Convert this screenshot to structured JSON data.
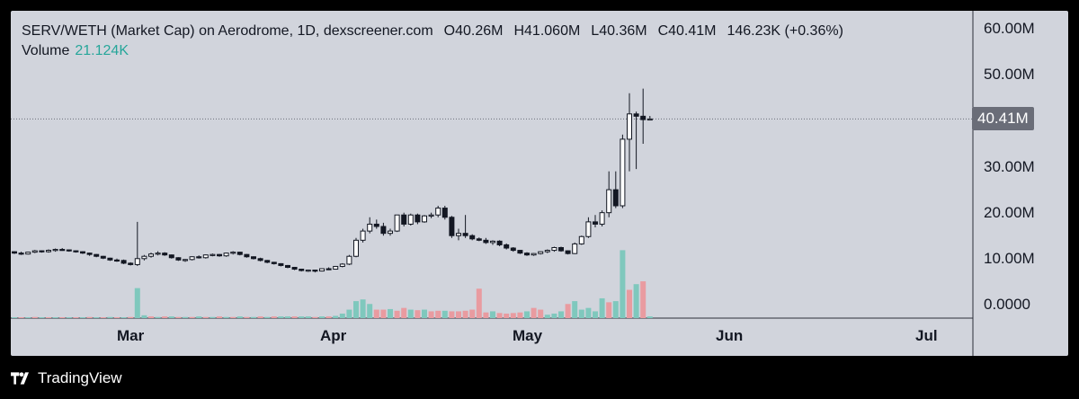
{
  "header": {
    "symbol": "SERV/WETH (Market Cap) on Aerodrome, 1D, dexscreener.com",
    "open": "O40.26M",
    "high": "H41.060M",
    "low": "L40.36M",
    "close": "C40.41M",
    "change": "146.23K (+0.36%)",
    "volume_label": "Volume",
    "volume_value": "21.124K"
  },
  "price_badge": "40.41M",
  "footer": {
    "brand": "TradingView"
  },
  "colors": {
    "up": "#26a69a",
    "down": "#ef5350",
    "candle": "#131722",
    "background": "#d1d4dc"
  },
  "chart_data": {
    "type": "candlestick",
    "x_ticks": [
      "Mar",
      "Apr",
      "May",
      "Jun",
      "Jul"
    ],
    "y_ticks": [
      "60.00M",
      "50.00M",
      "40.00M",
      "30.00M",
      "20.00M",
      "10.00M",
      "0.0000"
    ],
    "ylim": [
      -1,
      62
    ],
    "current_price": 40.41,
    "candles": [
      [
        11.5,
        11.6,
        11.0,
        11.2
      ],
      [
        11.2,
        11.5,
        10.8,
        11.0
      ],
      [
        11.0,
        11.5,
        10.9,
        11.4
      ],
      [
        11.4,
        11.9,
        11.2,
        11.7
      ],
      [
        11.7,
        11.8,
        11.3,
        11.5
      ],
      [
        11.5,
        12.0,
        11.3,
        11.8
      ],
      [
        11.8,
        12.2,
        11.5,
        12.0
      ],
      [
        12.0,
        12.3,
        11.7,
        11.9
      ],
      [
        11.9,
        12.0,
        11.5,
        11.7
      ],
      [
        11.7,
        11.8,
        11.3,
        11.5
      ],
      [
        11.5,
        11.6,
        11.0,
        11.2
      ],
      [
        11.2,
        11.3,
        10.6,
        10.9
      ],
      [
        10.9,
        11.0,
        10.3,
        10.5
      ],
      [
        10.5,
        10.6,
        9.9,
        10.1
      ],
      [
        10.1,
        10.2,
        9.5,
        9.7
      ],
      [
        9.7,
        10.0,
        9.3,
        9.6
      ],
      [
        9.6,
        9.8,
        8.8,
        9.0
      ],
      [
        9.0,
        9.2,
        8.5,
        8.7
      ],
      [
        8.7,
        18.0,
        8.4,
        10.0
      ],
      [
        10.0,
        10.8,
        9.6,
        10.5
      ],
      [
        10.5,
        11.3,
        10.2,
        11.0
      ],
      [
        11.0,
        11.6,
        10.7,
        11.2
      ],
      [
        11.2,
        11.4,
        10.6,
        10.8
      ],
      [
        10.8,
        10.9,
        10.0,
        10.2
      ],
      [
        10.2,
        10.3,
        9.5,
        9.7
      ],
      [
        9.7,
        9.9,
        9.3,
        9.8
      ],
      [
        9.8,
        10.5,
        9.6,
        10.4
      ],
      [
        10.4,
        10.7,
        10.0,
        10.2
      ],
      [
        10.2,
        10.9,
        10.0,
        10.8
      ],
      [
        10.8,
        11.1,
        10.5,
        10.9
      ],
      [
        10.9,
        11.0,
        10.4,
        10.6
      ],
      [
        10.6,
        11.3,
        10.4,
        11.2
      ],
      [
        11.2,
        11.6,
        10.9,
        11.4
      ],
      [
        11.4,
        11.5,
        10.7,
        10.9
      ],
      [
        10.9,
        11.0,
        10.2,
        10.4
      ],
      [
        10.4,
        10.5,
        9.8,
        10.0
      ],
      [
        10.0,
        10.2,
        9.4,
        9.6
      ],
      [
        9.6,
        9.7,
        9.0,
        9.2
      ],
      [
        9.2,
        9.3,
        8.7,
        8.9
      ],
      [
        8.9,
        9.0,
        8.3,
        8.5
      ],
      [
        8.5,
        8.6,
        7.9,
        8.1
      ],
      [
        8.1,
        8.2,
        7.5,
        7.7
      ],
      [
        7.7,
        7.8,
        7.2,
        7.4
      ],
      [
        7.4,
        7.6,
        7.1,
        7.5
      ],
      [
        7.5,
        7.6,
        7.0,
        7.3
      ],
      [
        7.3,
        7.9,
        7.2,
        7.8
      ],
      [
        7.8,
        8.1,
        7.5,
        7.7
      ],
      [
        7.7,
        8.4,
        7.6,
        8.3
      ],
      [
        8.3,
        9.0,
        8.1,
        8.8
      ],
      [
        8.8,
        10.8,
        8.6,
        10.5
      ],
      [
        10.5,
        14.5,
        10.3,
        14.0
      ],
      [
        14.0,
        16.5,
        13.5,
        16.0
      ],
      [
        16.0,
        19.0,
        15.5,
        17.5
      ],
      [
        17.5,
        18.5,
        16.5,
        17.0
      ],
      [
        17.0,
        17.8,
        15.0,
        15.5
      ],
      [
        15.5,
        16.5,
        15.0,
        16.0
      ],
      [
        16.0,
        19.5,
        15.8,
        19.5
      ],
      [
        19.5,
        20.0,
        17.0,
        17.5
      ],
      [
        17.5,
        19.8,
        17.2,
        19.5
      ],
      [
        19.5,
        19.8,
        17.5,
        18.0
      ],
      [
        18.0,
        19.5,
        17.8,
        19.3
      ],
      [
        19.3,
        20.0,
        18.8,
        19.5
      ],
      [
        19.5,
        21.5,
        19.0,
        21.0
      ],
      [
        21.0,
        21.5,
        18.5,
        19.0
      ],
      [
        19.0,
        19.3,
        14.5,
        15.0
      ],
      [
        15.0,
        16.5,
        14.0,
        15.5
      ],
      [
        15.5,
        19.5,
        14.5,
        15.0
      ],
      [
        15.0,
        15.3,
        14.0,
        14.3
      ],
      [
        14.3,
        14.6,
        13.8,
        14.0
      ],
      [
        14.0,
        14.5,
        13.2,
        13.5
      ],
      [
        13.5,
        14.0,
        13.0,
        13.8
      ],
      [
        13.8,
        14.0,
        12.7,
        13.0
      ],
      [
        13.0,
        13.3,
        12.0,
        12.3
      ],
      [
        12.3,
        12.5,
        11.5,
        11.8
      ],
      [
        11.8,
        11.9,
        11.0,
        11.2
      ],
      [
        11.2,
        11.4,
        10.6,
        10.8
      ],
      [
        10.8,
        11.2,
        10.6,
        11.1
      ],
      [
        11.1,
        11.6,
        10.9,
        11.5
      ],
      [
        11.5,
        12.0,
        11.2,
        11.8
      ],
      [
        11.8,
        12.6,
        11.5,
        12.4
      ],
      [
        12.4,
        12.6,
        11.5,
        11.7
      ],
      [
        11.7,
        11.8,
        10.9,
        11.1
      ],
      [
        11.1,
        13.5,
        11.0,
        13.2
      ],
      [
        13.2,
        15.0,
        13.0,
        14.8
      ],
      [
        14.8,
        19.0,
        14.5,
        18.0
      ],
      [
        18.0,
        19.5,
        16.8,
        17.5
      ],
      [
        17.5,
        20.5,
        17.0,
        20.0
      ],
      [
        20.0,
        29.0,
        19.0,
        25.0
      ],
      [
        25.0,
        29.0,
        21.0,
        21.5
      ],
      [
        21.5,
        37.0,
        21.0,
        36.0
      ],
      [
        36.0,
        46.0,
        29.0,
        41.5
      ],
      [
        41.5,
        42.0,
        29.5,
        41.0
      ],
      [
        41.0,
        47.0,
        35.0,
        40.26
      ],
      [
        40.26,
        41.06,
        40.36,
        40.41
      ]
    ],
    "volume": [
      [
        0.15,
        "up"
      ],
      [
        0.15,
        "down"
      ],
      [
        0.15,
        "up"
      ],
      [
        0.2,
        "down"
      ],
      [
        0.15,
        "up"
      ],
      [
        0.15,
        "down"
      ],
      [
        0.15,
        "up"
      ],
      [
        0.15,
        "down"
      ],
      [
        0.15,
        "up"
      ],
      [
        0.15,
        "down"
      ],
      [
        0.15,
        "up"
      ],
      [
        0.2,
        "down"
      ],
      [
        0.15,
        "up"
      ],
      [
        0.15,
        "down"
      ],
      [
        0.2,
        "up"
      ],
      [
        0.15,
        "down"
      ],
      [
        0.15,
        "up"
      ],
      [
        0.2,
        "down"
      ],
      [
        5.3,
        "up"
      ],
      [
        0.5,
        "up"
      ],
      [
        0.3,
        "down"
      ],
      [
        0.2,
        "up"
      ],
      [
        0.3,
        "down"
      ],
      [
        0.3,
        "up"
      ],
      [
        0.2,
        "down"
      ],
      [
        0.2,
        "up"
      ],
      [
        0.2,
        "down"
      ],
      [
        0.3,
        "up"
      ],
      [
        0.2,
        "down"
      ],
      [
        0.2,
        "up"
      ],
      [
        0.3,
        "down"
      ],
      [
        0.2,
        "up"
      ],
      [
        0.2,
        "down"
      ],
      [
        0.3,
        "up"
      ],
      [
        0.2,
        "down"
      ],
      [
        0.2,
        "up"
      ],
      [
        0.3,
        "down"
      ],
      [
        0.2,
        "up"
      ],
      [
        0.3,
        "down"
      ],
      [
        0.3,
        "up"
      ],
      [
        0.3,
        "up"
      ],
      [
        0.3,
        "down"
      ],
      [
        0.3,
        "up"
      ],
      [
        0.3,
        "up"
      ],
      [
        0.2,
        "down"
      ],
      [
        0.3,
        "up"
      ],
      [
        0.3,
        "down"
      ],
      [
        0.4,
        "up"
      ],
      [
        0.8,
        "up"
      ],
      [
        1.5,
        "up"
      ],
      [
        3.0,
        "up"
      ],
      [
        3.3,
        "up"
      ],
      [
        2.5,
        "up"
      ],
      [
        1.5,
        "down"
      ],
      [
        1.5,
        "down"
      ],
      [
        1.6,
        "up"
      ],
      [
        1.3,
        "down"
      ],
      [
        1.8,
        "down"
      ],
      [
        1.5,
        "up"
      ],
      [
        1.4,
        "down"
      ],
      [
        1.5,
        "up"
      ],
      [
        1.2,
        "down"
      ],
      [
        1.3,
        "down"
      ],
      [
        1.3,
        "up"
      ],
      [
        1.2,
        "down"
      ],
      [
        1.2,
        "down"
      ],
      [
        1.3,
        "down"
      ],
      [
        1.5,
        "down"
      ],
      [
        5.2,
        "down"
      ],
      [
        1.0,
        "down"
      ],
      [
        1.2,
        "up"
      ],
      [
        0.9,
        "down"
      ],
      [
        0.8,
        "down"
      ],
      [
        0.9,
        "down"
      ],
      [
        1.0,
        "down"
      ],
      [
        1.2,
        "up"
      ],
      [
        1.8,
        "down"
      ],
      [
        1.5,
        "down"
      ],
      [
        0.6,
        "up"
      ],
      [
        0.8,
        "up"
      ],
      [
        1.2,
        "up"
      ],
      [
        2.5,
        "down"
      ],
      [
        3.0,
        "up"
      ],
      [
        1.5,
        "up"
      ],
      [
        1.8,
        "up"
      ],
      [
        1.2,
        "up"
      ],
      [
        3.5,
        "up"
      ],
      [
        2.8,
        "down"
      ],
      [
        3.0,
        "up"
      ],
      [
        12.0,
        "up"
      ],
      [
        5.0,
        "down"
      ],
      [
        6.0,
        "up"
      ],
      [
        6.5,
        "down"
      ],
      [
        0.3,
        "up"
      ]
    ]
  }
}
